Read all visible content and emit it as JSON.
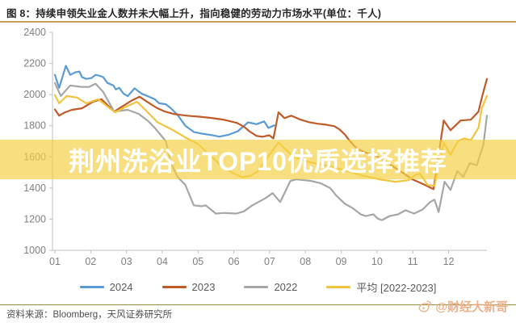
{
  "title": "图 8：持续申领失业金人数并未大幅上升，指向稳健的劳动力市场水平(单位：千人)",
  "overlay": {
    "text": "荆州洗浴业TOP10优质选择推荐",
    "band_color": "#F3D044"
  },
  "source": {
    "text": "资料来源：Bloomberg，天风证券研究所"
  },
  "watermark": {
    "handle": "@财经大新哥",
    "icon": "weibo-icon",
    "color": "#EBAD82"
  },
  "colors": {
    "title_rule": "#C6A258",
    "footer_rule": "#A5873E",
    "axis": "#BFBFBF",
    "axis_text": "#7F7F7F",
    "legend_text": "#595959"
  },
  "chart_data": {
    "type": "line",
    "title": "持续申领失业金人数(单位：千人)",
    "xlabel": "",
    "ylabel": "",
    "grid": false,
    "legend_position": "bottom",
    "x_axis": {
      "unit": "month",
      "tick_labels": [
        "01",
        "02",
        "03",
        "04",
        "05",
        "06",
        "07",
        "08",
        "09",
        "10",
        "11",
        "12"
      ],
      "weeks_per_month": 4.225,
      "week_range": [
        1,
        52
      ]
    },
    "y_axis": {
      "min": 1000,
      "max": 2400,
      "tick_step": 200,
      "tick_labels": [
        "2400",
        "2200",
        "2000",
        "1800",
        "1600",
        "1400",
        "1200",
        "1000"
      ]
    },
    "series": [
      {
        "name": "2024",
        "color": "#5B9BD5",
        "points": [
          [
            1,
            2127
          ],
          [
            1.5,
            2043
          ],
          [
            2.3,
            2185
          ],
          [
            2.8,
            2127
          ],
          [
            3.4,
            2143
          ],
          [
            3.9,
            2148
          ],
          [
            4.2,
            2112
          ],
          [
            4.7,
            2101
          ],
          [
            5.3,
            2106
          ],
          [
            5.8,
            2127
          ],
          [
            6.2,
            2122
          ],
          [
            6.7,
            2112
          ],
          [
            7.2,
            2075
          ],
          [
            7.9,
            2059
          ],
          [
            8.2,
            2033
          ],
          [
            8.6,
            2043
          ],
          [
            9.1,
            2006
          ],
          [
            9.6,
            1990
          ],
          [
            10.4,
            2040
          ],
          [
            11.2,
            2007
          ],
          [
            12.8,
            1970
          ],
          [
            13.3,
            1944
          ],
          [
            14.1,
            1938
          ],
          [
            14.7,
            1912
          ],
          [
            15.5,
            1868
          ],
          [
            16.4,
            1800
          ],
          [
            17.4,
            1760
          ],
          [
            18.3,
            1750
          ],
          [
            19.5,
            1740
          ],
          [
            20.4,
            1730
          ],
          [
            21.5,
            1742
          ],
          [
            22.6,
            1765
          ],
          [
            23.8,
            1822
          ],
          [
            24.8,
            1810
          ],
          [
            25.7,
            1828
          ],
          [
            26.2,
            1786
          ],
          [
            26.9,
            1802
          ]
        ]
      },
      {
        "name": "2023",
        "color": "#C05A28",
        "points": [
          [
            1,
            1905
          ],
          [
            1.5,
            1865
          ],
          [
            2.2,
            1886
          ],
          [
            3,
            1902
          ],
          [
            4.2,
            1912
          ],
          [
            5.5,
            1954
          ],
          [
            6.5,
            1970
          ],
          [
            8,
            1891
          ],
          [
            9,
            1925
          ],
          [
            10,
            1960
          ],
          [
            11,
            1986
          ],
          [
            12,
            1950
          ],
          [
            13,
            1915
          ],
          [
            14,
            1891
          ],
          [
            15,
            1876
          ],
          [
            16.5,
            1865
          ],
          [
            18,
            1858
          ],
          [
            19.5,
            1850
          ],
          [
            21,
            1838
          ],
          [
            22.5,
            1818
          ],
          [
            23.4,
            1790
          ],
          [
            24,
            1762
          ],
          [
            24.8,
            1735
          ],
          [
            25.5,
            1729
          ],
          [
            26.3,
            1739
          ],
          [
            26.8,
            1718
          ],
          [
            27.4,
            1886
          ],
          [
            28.1,
            1849
          ],
          [
            28.9,
            1865
          ],
          [
            30,
            1839
          ],
          [
            31,
            1823
          ],
          [
            32,
            1813
          ],
          [
            33,
            1807
          ],
          [
            34,
            1797
          ],
          [
            34.6,
            1776
          ],
          [
            35.2,
            1745
          ],
          [
            35.8,
            1703
          ],
          [
            36.6,
            1655
          ],
          [
            37.6,
            1629
          ],
          [
            38.6,
            1613
          ],
          [
            39.6,
            1587
          ],
          [
            41,
            1535
          ],
          [
            42.2,
            1493
          ],
          [
            43.2,
            1456
          ],
          [
            44.3,
            1430
          ],
          [
            45.7,
            1393
          ],
          [
            46.9,
            1834
          ],
          [
            47.7,
            1771
          ],
          [
            48.9,
            1834
          ],
          [
            50.1,
            1839
          ],
          [
            51,
            1891
          ],
          [
            51.4,
            1981
          ],
          [
            52,
            2101
          ]
        ]
      },
      {
        "name": "2022",
        "color": "#A6A6A6",
        "points": [
          [
            1,
            2075
          ],
          [
            1.7,
            1991
          ],
          [
            2.8,
            2059
          ],
          [
            4,
            2050
          ],
          [
            5,
            2049
          ],
          [
            5.8,
            2070
          ],
          [
            6.7,
            2017
          ],
          [
            8,
            1891
          ],
          [
            9.6,
            1902
          ],
          [
            10.9,
            1876
          ],
          [
            12,
            1830
          ],
          [
            12.8,
            1786
          ],
          [
            14.1,
            1700
          ],
          [
            14.7,
            1560
          ],
          [
            15.5,
            1470
          ],
          [
            16.4,
            1420
          ],
          [
            17.4,
            1289
          ],
          [
            18.3,
            1283
          ],
          [
            18.8,
            1289
          ],
          [
            20,
            1236
          ],
          [
            21,
            1240
          ],
          [
            22.4,
            1236
          ],
          [
            23.3,
            1250
          ],
          [
            24.3,
            1289
          ],
          [
            25.9,
            1336
          ],
          [
            26.7,
            1367
          ],
          [
            27.6,
            1310
          ],
          [
            28.8,
            1446
          ],
          [
            29.5,
            1456
          ],
          [
            31.2,
            1446
          ],
          [
            32.4,
            1430
          ],
          [
            33.5,
            1400
          ],
          [
            34.2,
            1352
          ],
          [
            35.2,
            1300
          ],
          [
            36.1,
            1273
          ],
          [
            37.1,
            1231
          ],
          [
            37.7,
            1220
          ],
          [
            38.6,
            1231
          ],
          [
            39.1,
            1204
          ],
          [
            39.6,
            1194
          ],
          [
            40.5,
            1220
          ],
          [
            41.5,
            1231
          ],
          [
            42.4,
            1257
          ],
          [
            43.4,
            1236
          ],
          [
            44.4,
            1262
          ],
          [
            45.3,
            1310
          ],
          [
            45.8,
            1325
          ],
          [
            46.3,
            1246
          ],
          [
            47,
            1440
          ],
          [
            47.7,
            1388
          ],
          [
            48.5,
            1509
          ],
          [
            49.2,
            1472
          ],
          [
            50,
            1561
          ],
          [
            50.8,
            1545
          ],
          [
            51.6,
            1682
          ],
          [
            52,
            1865
          ]
        ]
      },
      {
        "name": "平均 [2022-2023]",
        "color": "#F2C43D",
        "points": [
          [
            1,
            1997
          ],
          [
            1.5,
            1944
          ],
          [
            2.4,
            1991
          ],
          [
            3.6,
            1981
          ],
          [
            4.7,
            1944
          ],
          [
            6.1,
            1970
          ],
          [
            8.1,
            1886
          ],
          [
            9.3,
            1920
          ],
          [
            10.7,
            1954
          ],
          [
            11.9,
            1890
          ],
          [
            13.1,
            1823
          ],
          [
            15,
            1770
          ],
          [
            16.3,
            1728
          ],
          [
            17.9,
            1682
          ],
          [
            19.1,
            1620
          ],
          [
            20.3,
            1560
          ],
          [
            21.9,
            1500
          ],
          [
            23.1,
            1470
          ],
          [
            24.1,
            1480
          ],
          [
            25,
            1509
          ],
          [
            26,
            1590
          ],
          [
            27.4,
            1692
          ],
          [
            28.4,
            1640
          ],
          [
            29.1,
            1603
          ],
          [
            30.7,
            1571
          ],
          [
            32.4,
            1550
          ],
          [
            33.9,
            1535
          ],
          [
            35.5,
            1509
          ],
          [
            37.1,
            1482
          ],
          [
            39.3,
            1456
          ],
          [
            41.2,
            1440
          ],
          [
            42.7,
            1450
          ],
          [
            43.6,
            1485
          ],
          [
            44.1,
            1493
          ],
          [
            45,
            1419
          ],
          [
            45.8,
            1414
          ],
          [
            46.9,
            1692
          ],
          [
            47.7,
            1613
          ],
          [
            48.6,
            1703
          ],
          [
            49.3,
            1718
          ],
          [
            50.1,
            1708
          ],
          [
            51,
            1786
          ],
          [
            51.4,
            1912
          ],
          [
            52,
            1992
          ]
        ]
      }
    ],
    "legend": [
      {
        "label": "2024",
        "color": "#5B9BD5"
      },
      {
        "label": "2023",
        "color": "#C05A28"
      },
      {
        "label": "2022",
        "color": "#A6A6A6"
      },
      {
        "label": "平均 [2022-2023]",
        "color": "#F2C43D"
      }
    ]
  }
}
